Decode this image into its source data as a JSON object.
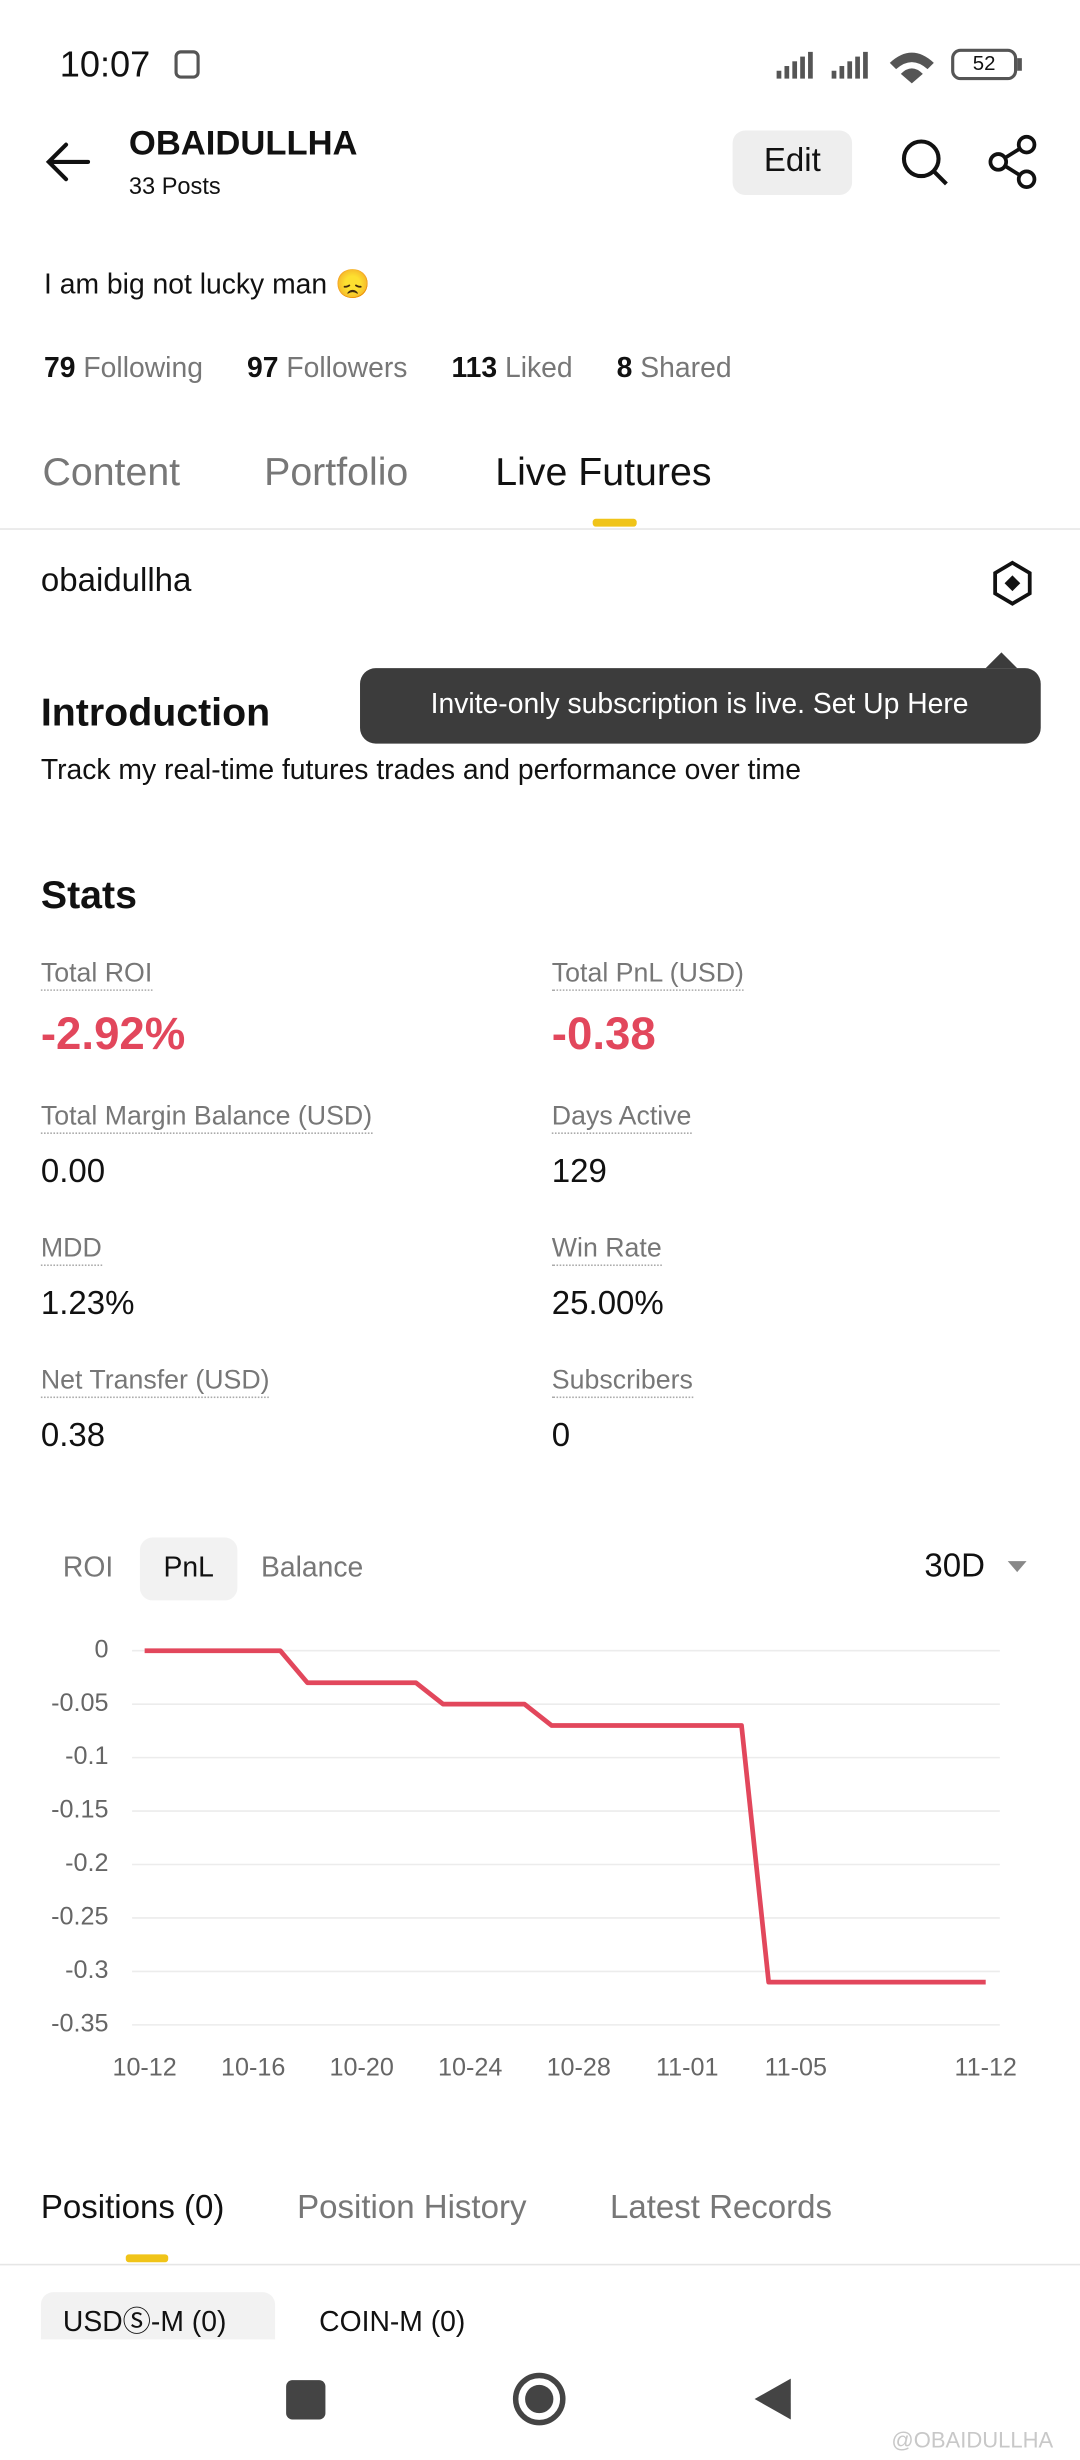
{
  "status_bar": {
    "time": "10:07",
    "battery": "52"
  },
  "header": {
    "title": "OBAIDULLHA",
    "subtitle": "33 Posts",
    "edit": "Edit"
  },
  "bio": "I am big not lucky man 😞",
  "counts": [
    {
      "value": "79",
      "label": "Following"
    },
    {
      "value": "97",
      "label": "Followers"
    },
    {
      "value": "113",
      "label": "Liked"
    },
    {
      "value": "8",
      "label": "Shared"
    }
  ],
  "tabs": [
    "Content",
    "Portfolio",
    "Live Futures"
  ],
  "account": "obaidullha",
  "tooltip": "Invite-only subscription is live. Set Up Here",
  "intro": {
    "title": "Introduction",
    "text": "Track my real-time futures trades and performance over time"
  },
  "stats": {
    "title": "Stats",
    "items": [
      {
        "label": "Total ROI",
        "value": "-2.92%"
      },
      {
        "label": "Total PnL (USD)",
        "value": "-0.38"
      },
      {
        "label": "Total Margin Balance (USD)",
        "value": "0.00"
      },
      {
        "label": "Days Active",
        "value": "129"
      },
      {
        "label": "MDD",
        "value": "1.23%"
      },
      {
        "label": "Win Rate",
        "value": "25.00%"
      },
      {
        "label": "Net Transfer (USD)",
        "value": "0.38"
      },
      {
        "label": "Subscribers",
        "value": "0"
      }
    ]
  },
  "chart_tabs": [
    "ROI",
    "PnL",
    "Balance"
  ],
  "chart_period": "30D",
  "chart_data": {
    "type": "line",
    "color": "#e2475c",
    "grid": true,
    "x": [
      "10-12",
      "10-17",
      "10-18",
      "10-22",
      "10-23",
      "10-26",
      "10-27",
      "11-03",
      "11-04",
      "11-12"
    ],
    "values": [
      0,
      0,
      -0.03,
      -0.03,
      -0.05,
      -0.05,
      -0.07,
      -0.07,
      -0.31,
      -0.31
    ],
    "xlim": [
      "10-12",
      "11-12"
    ],
    "xticks": [
      "10-12",
      "10-16",
      "10-20",
      "10-24",
      "10-28",
      "11-01",
      "11-05",
      "11-12"
    ],
    "ylim": [
      -0.35,
      0
    ],
    "yticks": [
      0,
      -0.05,
      -0.1,
      -0.15,
      -0.2,
      -0.25,
      -0.3,
      -0.35
    ]
  },
  "bottom_tabs": [
    "Positions (0)",
    "Position History",
    "Latest Records"
  ],
  "sub_tabs": [
    "USDⓈ-M (0)",
    "COIN-M (0)"
  ],
  "watermark": "@OBAIDULLHA"
}
